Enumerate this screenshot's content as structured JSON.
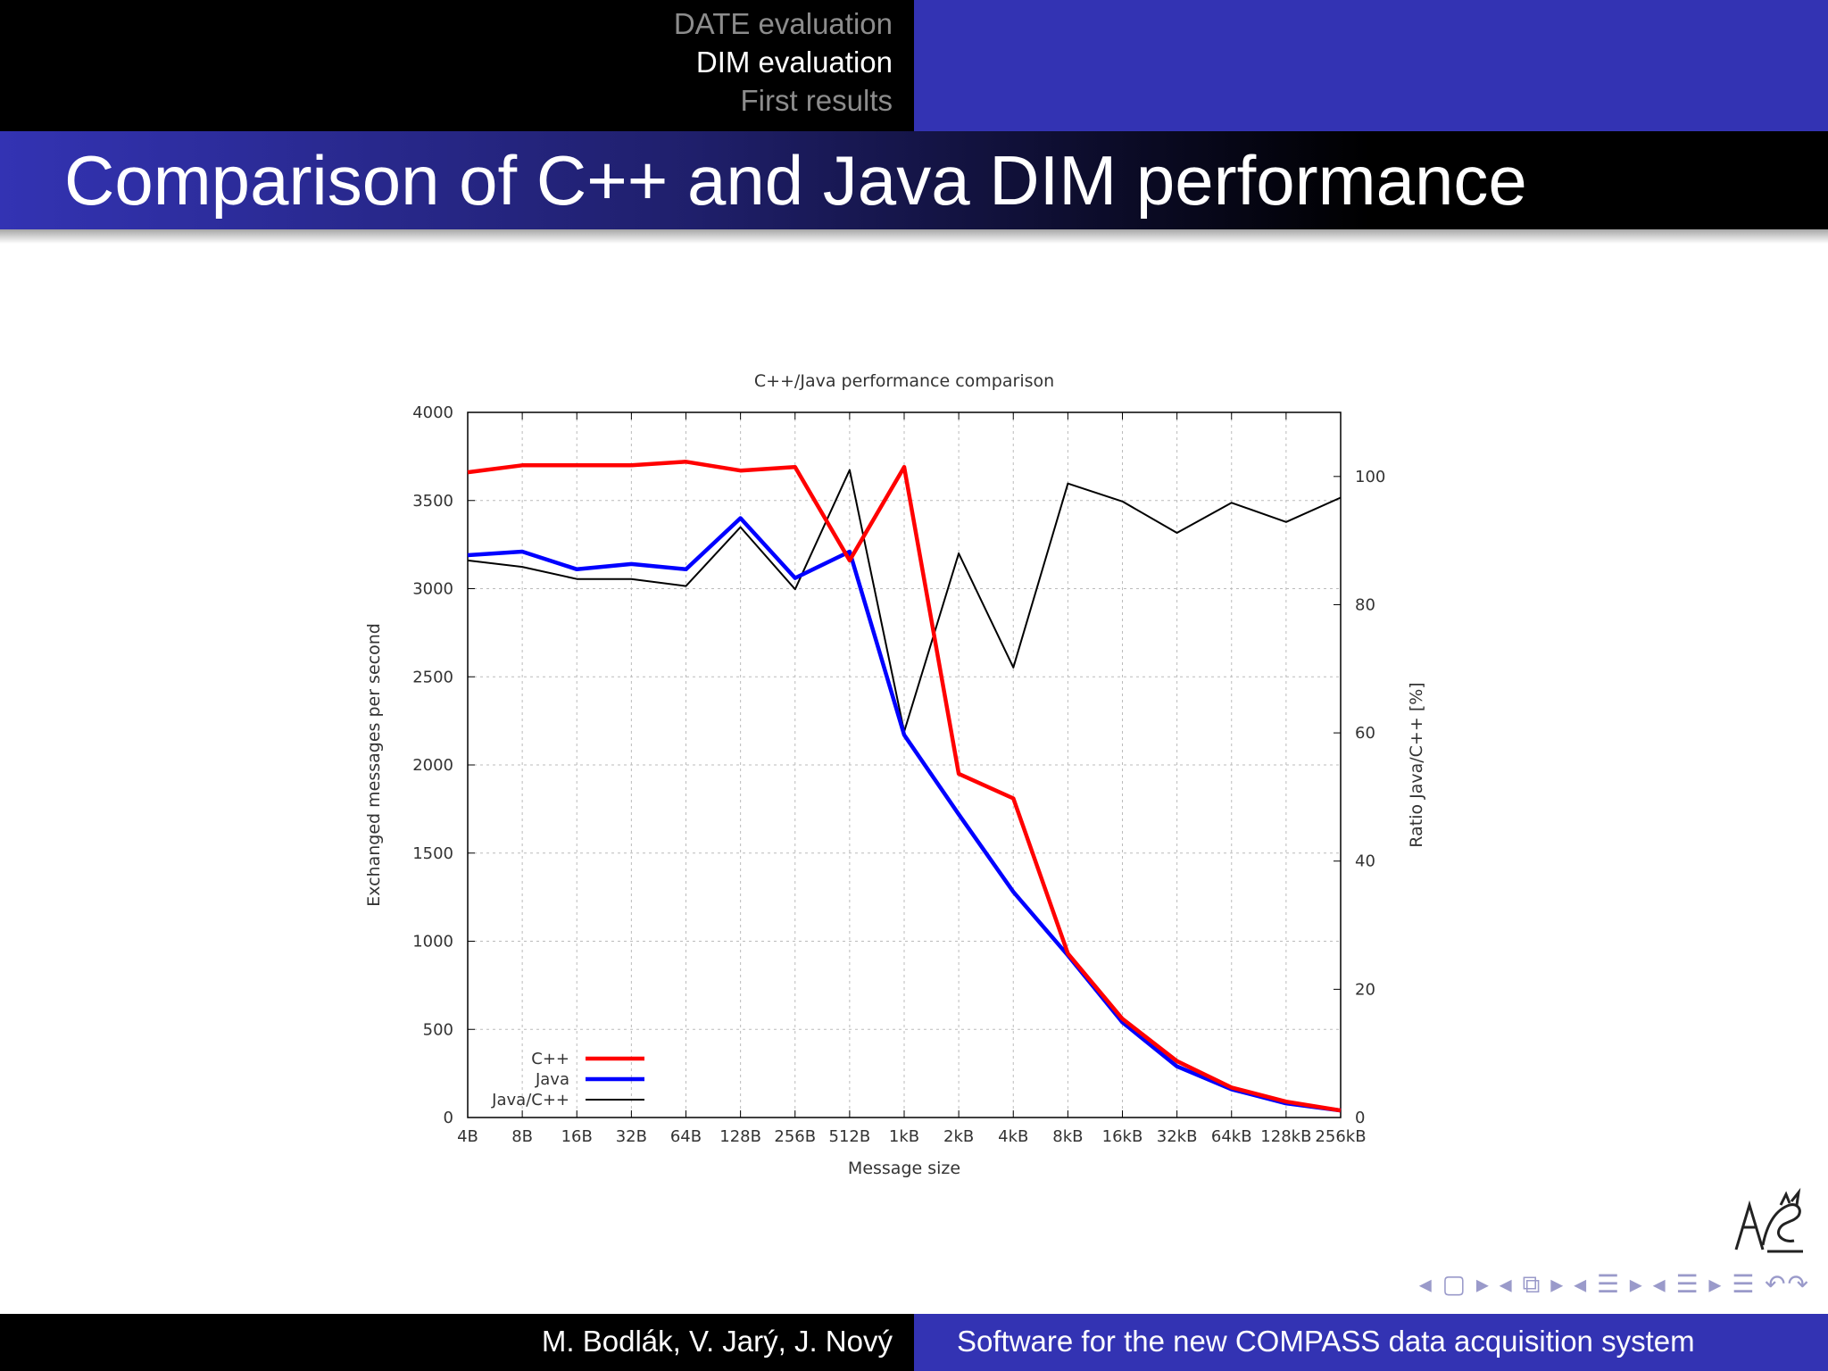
{
  "header": {
    "nav": [
      {
        "label": "DATE evaluation",
        "active": false
      },
      {
        "label": "DIM evaluation",
        "active": true
      },
      {
        "label": "First results",
        "active": false
      }
    ],
    "title": "Comparison of C++ and Java DIM performance"
  },
  "footer": {
    "authors": "M. Bodlák, V. Jarý, J. Nový",
    "talk_title": "Software for the new COMPASS data acquisition system"
  },
  "nav_controls": {
    "symbols": "◂ ▢ ▸ ◂ ⧉ ▸ ◂ ☰ ▸ ◂ ☰ ▸ ☰ ↶↷"
  },
  "colors": {
    "cpp": "#ff0000",
    "java": "#0000ff",
    "ratio": "#000000",
    "header_blue": "#3333b3"
  },
  "chart_data": {
    "type": "line",
    "title": "C++/Java performance comparison",
    "xlabel": "Message size",
    "ylabel": "Exchanged messages per second",
    "y2label": "Ratio Java/C++ [%]",
    "categories": [
      "4B",
      "8B",
      "16B",
      "32B",
      "64B",
      "128B",
      "256B",
      "512B",
      "1kB",
      "2kB",
      "4kB",
      "8kB",
      "16kB",
      "32kB",
      "64kB",
      "128kB",
      "256kB"
    ],
    "ylim": [
      0,
      4000
    ],
    "yticks": [
      0,
      500,
      1000,
      1500,
      2000,
      2500,
      3000,
      3500,
      4000
    ],
    "y2lim": [
      0,
      110
    ],
    "y2ticks": [
      0,
      20,
      40,
      60,
      80,
      100
    ],
    "grid": true,
    "legend_position": "bottom-left",
    "series": [
      {
        "name": "C++",
        "axis": "y",
        "values": [
          3660,
          3700,
          3700,
          3700,
          3720,
          3670,
          3690,
          3160,
          3690,
          1950,
          1810,
          930,
          560,
          320,
          170,
          90,
          40
        ]
      },
      {
        "name": "Java",
        "axis": "y",
        "values": [
          3190,
          3210,
          3110,
          3140,
          3110,
          3400,
          3060,
          3210,
          2170,
          1720,
          1280,
          920,
          540,
          290,
          160,
          80,
          40
        ]
      },
      {
        "name": "Java/C++",
        "axis": "y2",
        "values": [
          86.9,
          85.9,
          84.0,
          84.0,
          82.9,
          92.1,
          82.4,
          101.0,
          60.2,
          88.0,
          70.2,
          98.9,
          96.1,
          91.2,
          95.9,
          92.9,
          96.7
        ]
      }
    ]
  }
}
